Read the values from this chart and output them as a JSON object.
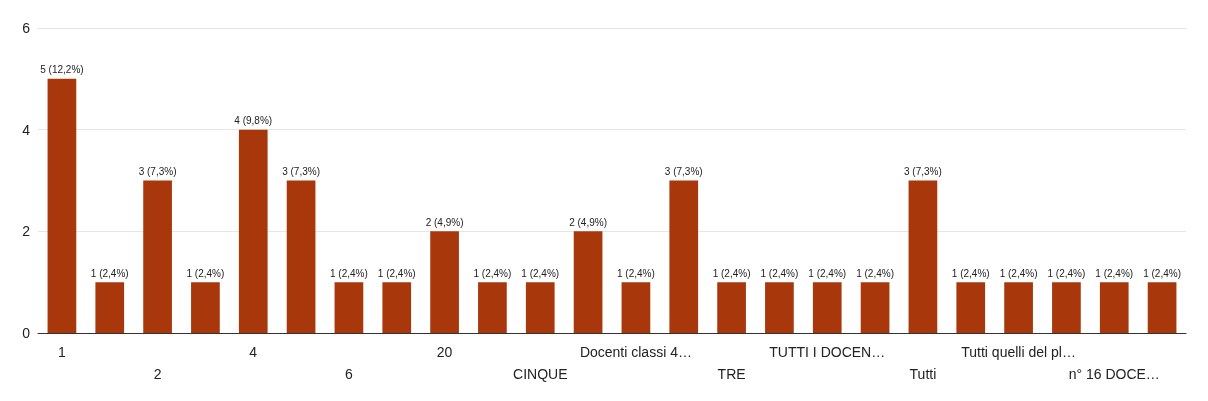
{
  "chart_data": {
    "type": "bar",
    "categories": [
      "1",
      null,
      "2",
      null,
      "4",
      null,
      "6",
      null,
      "20",
      null,
      "CINQUE",
      null,
      "Docenti classi 4…",
      null,
      "TRE",
      null,
      "TUTTI I DOCEN…",
      null,
      "Tutti",
      null,
      "Tutti quelli del pl…",
      null,
      "n° 16 DOCE…",
      null
    ],
    "values": [
      5,
      1,
      3,
      1,
      4,
      3,
      1,
      1,
      2,
      1,
      1,
      2,
      1,
      3,
      1,
      1,
      1,
      1,
      3,
      1,
      1,
      1,
      1,
      1
    ],
    "value_labels": [
      "5 (12,2%)",
      "1 (2,4%)",
      "3 (7,3%)",
      "1 (2,4%)",
      "4 (9,8%)",
      "3 (7,3%)",
      "1 (2,4%)",
      "1 (2,4%)",
      "2 (4,9%)",
      "1 (2,4%)",
      "1 (2,4%)",
      "2 (4,9%)",
      "1 (2,4%)",
      "3 (7,3%)",
      "1 (2,4%)",
      "1 (2,4%)",
      "1 (2,4%)",
      "1 (2,4%)",
      "3 (7,3%)",
      "1 (2,4%)",
      "1 (2,4%)",
      "1 (2,4%)",
      "1 (2,4%)",
      "1 (2,4%)"
    ],
    "color": "#a8380b",
    "ylim": [
      0,
      6
    ],
    "yticks": [
      0,
      2,
      4,
      6
    ],
    "grid": "y"
  }
}
